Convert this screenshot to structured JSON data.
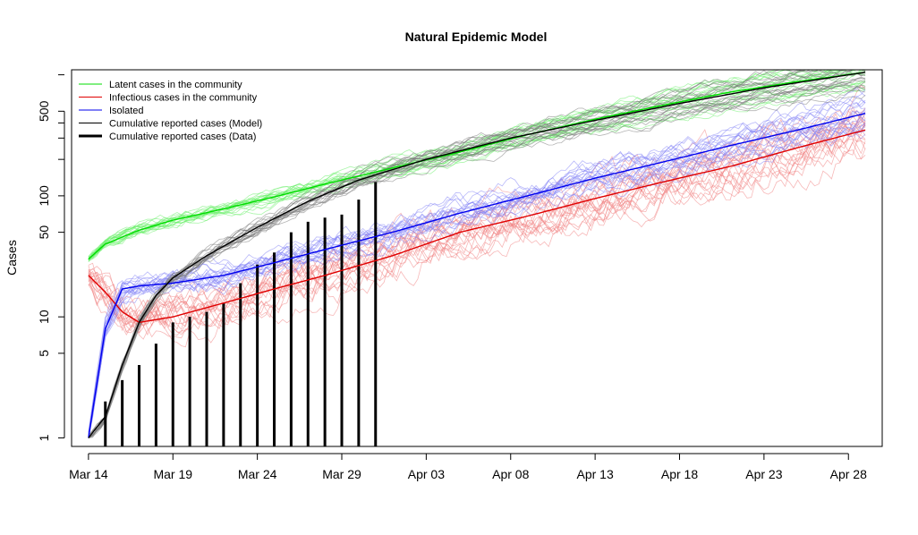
{
  "chart_data": {
    "type": "line",
    "title": "Natural Epidemic Model",
    "ylabel": "Cases",
    "xlabel": "",
    "y_scale": "log",
    "x_axis": {
      "range": [
        "2020-03-13",
        "2020-04-30"
      ],
      "ticks": [
        {
          "date": "2020-03-14",
          "label": "Mar 14"
        },
        {
          "date": "2020-03-19",
          "label": "Mar 19"
        },
        {
          "date": "2020-03-24",
          "label": "Mar 24"
        },
        {
          "date": "2020-03-29",
          "label": "Mar 29"
        },
        {
          "date": "2020-04-03",
          "label": "Apr 03"
        },
        {
          "date": "2020-04-08",
          "label": "Apr 08"
        },
        {
          "date": "2020-04-13",
          "label": "Apr 13"
        },
        {
          "date": "2020-04-18",
          "label": "Apr 18"
        },
        {
          "date": "2020-04-23",
          "label": "Apr 23"
        },
        {
          "date": "2020-04-28",
          "label": "Apr 28"
        }
      ]
    },
    "y_axis": {
      "range": [
        0.85,
        1100
      ],
      "ticks": [
        {
          "value": 1,
          "label": "1"
        },
        {
          "value": 5,
          "label": "5"
        },
        {
          "value": 10,
          "label": "10"
        },
        {
          "value": 50,
          "label": "50"
        },
        {
          "value": 100,
          "label": "100"
        },
        {
          "value": 500,
          "label": "500"
        }
      ]
    },
    "legend": {
      "position": "top-left",
      "entries": [
        {
          "label": "Latent cases in the community",
          "color": "#00dd00",
          "width": 1
        },
        {
          "label": "Infectious cases in the community",
          "color": "#e00000",
          "width": 1
        },
        {
          "label": "Isolated",
          "color": "#0000ee",
          "width": 1
        },
        {
          "label": "Cumulative reported cases (Model)",
          "color": "#000000",
          "width": 1
        },
        {
          "label": "Cumulative reported cases (Data)",
          "color": "#000000",
          "width": 3
        }
      ]
    },
    "series": [
      {
        "name": "Latent cases in the community",
        "color": "#00dd00",
        "x": [
          "2020-03-14",
          "2020-03-15",
          "2020-03-17",
          "2020-03-19",
          "2020-03-22",
          "2020-03-25",
          "2020-03-28",
          "2020-04-01",
          "2020-04-05",
          "2020-04-09",
          "2020-04-13",
          "2020-04-17",
          "2020-04-21",
          "2020-04-25",
          "2020-04-29"
        ],
        "y": [
          30,
          40,
          52,
          63,
          78,
          98,
          125,
          170,
          230,
          320,
          430,
          560,
          720,
          880,
          1050
        ]
      },
      {
        "name": "Infectious cases in the community",
        "color": "#e00000",
        "x": [
          "2020-03-14",
          "2020-03-15",
          "2020-03-16",
          "2020-03-17",
          "2020-03-19",
          "2020-03-22",
          "2020-03-25",
          "2020-03-28",
          "2020-04-01",
          "2020-04-05",
          "2020-04-09",
          "2020-04-13",
          "2020-04-17",
          "2020-04-21",
          "2020-04-25",
          "2020-04-29"
        ],
        "y": [
          22,
          16,
          11,
          9,
          10,
          13,
          17,
          22,
          32,
          50,
          68,
          95,
          130,
          175,
          250,
          350
        ]
      },
      {
        "name": "Isolated",
        "color": "#0000ee",
        "x": [
          "2020-03-14",
          "2020-03-15",
          "2020-03-16",
          "2020-03-17",
          "2020-03-19",
          "2020-03-22",
          "2020-03-25",
          "2020-03-28",
          "2020-04-01",
          "2020-04-05",
          "2020-04-09",
          "2020-04-13",
          "2020-04-17",
          "2020-04-21",
          "2020-04-25",
          "2020-04-29"
        ],
        "y": [
          1,
          8,
          17,
          18,
          19,
          22,
          28,
          36,
          50,
          72,
          100,
          140,
          190,
          260,
          350,
          480
        ]
      },
      {
        "name": "Cumulative reported cases (Model)",
        "color": "#000000",
        "x": [
          "2020-03-14",
          "2020-03-15",
          "2020-03-16",
          "2020-03-17",
          "2020-03-18",
          "2020-03-19",
          "2020-03-21",
          "2020-03-24",
          "2020-03-27",
          "2020-03-30",
          "2020-04-03",
          "2020-04-08",
          "2020-04-13",
          "2020-04-18",
          "2020-04-23",
          "2020-04-29"
        ],
        "y": [
          1,
          1.5,
          4,
          9,
          15,
          21,
          32,
          55,
          90,
          135,
          200,
          300,
          420,
          580,
          780,
          1050
        ]
      }
    ],
    "bars": {
      "name": "Cumulative reported cases (Data)",
      "color": "#000000",
      "x": [
        "2020-03-15",
        "2020-03-16",
        "2020-03-17",
        "2020-03-18",
        "2020-03-19",
        "2020-03-20",
        "2020-03-21",
        "2020-03-22",
        "2020-03-23",
        "2020-03-24",
        "2020-03-25",
        "2020-03-26",
        "2020-03-27",
        "2020-03-28",
        "2020-03-29",
        "2020-03-30",
        "2020-03-31"
      ],
      "y": [
        2,
        3,
        4,
        6,
        9,
        10,
        11,
        13,
        19,
        27,
        34,
        50,
        61,
        66,
        70,
        93,
        130
      ]
    },
    "simulations_per_series": 20
  }
}
